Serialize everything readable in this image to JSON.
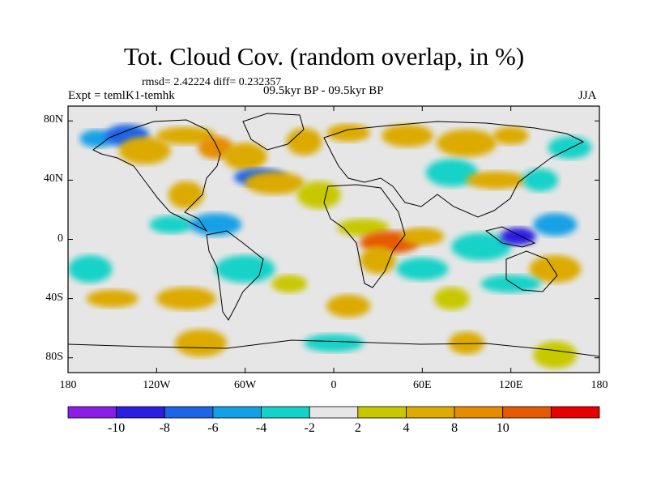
{
  "header": {
    "title": "Tot. Cloud Cov. (random overlap, in %)",
    "stats": "rmsd= 2.42224  diff= 0.232357",
    "experiment": "Expt = temlK1-temhk",
    "period": "09.5kyr BP - 09.5kyr BP",
    "season": "JJA"
  },
  "map": {
    "projection": "cylindrical-equidistant",
    "lon_range": [
      -180,
      180
    ],
    "lat_range": [
      -90,
      90
    ],
    "background_color": "#e6e6e6",
    "coastline_color": "#000000",
    "y_ticks": [
      {
        "lat": 80,
        "label": "80N"
      },
      {
        "lat": 40,
        "label": "40N"
      },
      {
        "lat": 0,
        "label": "0"
      },
      {
        "lat": -40,
        "label": "40S"
      },
      {
        "lat": -80,
        "label": "80S"
      }
    ],
    "x_ticks": [
      {
        "lon": -180,
        "label": "180"
      },
      {
        "lon": -120,
        "label": "120W"
      },
      {
        "lon": -60,
        "label": "60W"
      },
      {
        "lon": 0,
        "label": "0"
      },
      {
        "lon": 60,
        "label": "60E"
      },
      {
        "lon": 120,
        "label": "120E"
      },
      {
        "lon": 180,
        "label": "180"
      }
    ]
  },
  "colorbar": {
    "colors": [
      "#8a1ee6",
      "#2a1ee0",
      "#1e64e6",
      "#14a0e6",
      "#14d2c8",
      "#e6e6e6",
      "#c8c800",
      "#dcaa00",
      "#e68c00",
      "#e65a00",
      "#e60000"
    ],
    "labels": [
      "-10",
      "-8",
      "-6",
      "-4",
      "-2",
      "2",
      "4",
      "8",
      "10"
    ]
  },
  "anomalies": [
    {
      "lon": -160,
      "lat": 68,
      "value": -6
    },
    {
      "lon": -140,
      "lat": 70,
      "value": -8
    },
    {
      "lon": -128,
      "lat": 60,
      "value": 4
    },
    {
      "lon": -100,
      "lat": 70,
      "value": 4
    },
    {
      "lon": -80,
      "lat": 62,
      "value": 8
    },
    {
      "lon": -60,
      "lat": 56,
      "value": 6
    },
    {
      "lon": -50,
      "lat": 42,
      "value": -8
    },
    {
      "lon": -40,
      "lat": 38,
      "value": 4
    },
    {
      "lon": -20,
      "lat": 66,
      "value": 4
    },
    {
      "lon": 10,
      "lat": 72,
      "value": 4
    },
    {
      "lon": 50,
      "lat": 70,
      "value": 4
    },
    {
      "lon": 90,
      "lat": 65,
      "value": 4
    },
    {
      "lon": 120,
      "lat": 70,
      "value": 4
    },
    {
      "lon": 160,
      "lat": 62,
      "value": -4
    },
    {
      "lon": 80,
      "lat": 45,
      "value": -4
    },
    {
      "lon": 110,
      "lat": 40,
      "value": 4
    },
    {
      "lon": 140,
      "lat": 40,
      "value": -4
    },
    {
      "lon": -10,
      "lat": 30,
      "value": 3
    },
    {
      "lon": 20,
      "lat": 8,
      "value": 3
    },
    {
      "lon": 38,
      "lat": -2,
      "value": 10
    },
    {
      "lon": 30,
      "lat": -14,
      "value": 6
    },
    {
      "lon": 60,
      "lat": 2,
      "value": 4
    },
    {
      "lon": 60,
      "lat": -20,
      "value": -4
    },
    {
      "lon": 100,
      "lat": -5,
      "value": -3
    },
    {
      "lon": 125,
      "lat": 2,
      "value": -9
    },
    {
      "lon": 150,
      "lat": 10,
      "value": -6
    },
    {
      "lon": 150,
      "lat": -20,
      "value": 6
    },
    {
      "lon": 120,
      "lat": -30,
      "value": -3
    },
    {
      "lon": 80,
      "lat": -40,
      "value": 3
    },
    {
      "lon": -165,
      "lat": -20,
      "value": -4
    },
    {
      "lon": -150,
      "lat": -40,
      "value": 6
    },
    {
      "lon": -100,
      "lat": -40,
      "value": 6
    },
    {
      "lon": -100,
      "lat": 30,
      "value": 4
    },
    {
      "lon": -110,
      "lat": 10,
      "value": -4
    },
    {
      "lon": -80,
      "lat": 10,
      "value": -6
    },
    {
      "lon": -60,
      "lat": -20,
      "value": -4
    },
    {
      "lon": -30,
      "lat": -30,
      "value": 3
    },
    {
      "lon": 10,
      "lat": -45,
      "value": 4
    },
    {
      "lon": -90,
      "lat": -70,
      "value": 4
    },
    {
      "lon": 0,
      "lat": -70,
      "value": -3
    },
    {
      "lon": 90,
      "lat": -70,
      "value": 4
    },
    {
      "lon": 150,
      "lat": -78,
      "value": 3
    }
  ]
}
